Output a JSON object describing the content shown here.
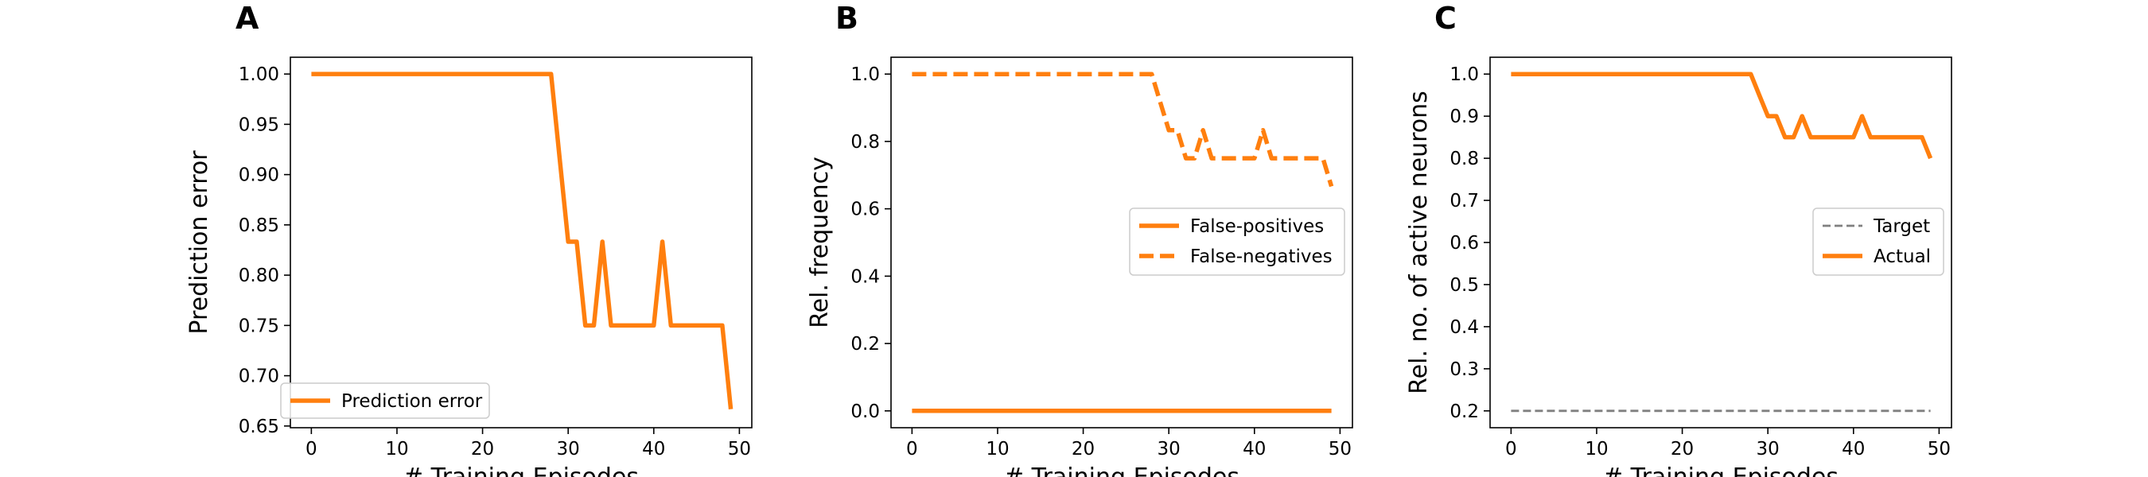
{
  "chart_data": [
    {
      "type": "line",
      "panel_label": "A",
      "xlabel": "# Training Episodes",
      "ylabel": "Prediction error",
      "xlim": [
        -2.45,
        51.45
      ],
      "ylim": [
        0.6483,
        1.0167
      ],
      "xticks": [
        0,
        10,
        20,
        30,
        40,
        50
      ],
      "yticks": [
        0.65,
        0.7,
        0.75,
        0.8,
        0.85,
        0.9,
        0.95,
        1.0
      ],
      "ytick_labels": [
        "0.65",
        "0.70",
        "0.75",
        "0.80",
        "0.85",
        "0.90",
        "0.95",
        "1.00"
      ],
      "grid": false,
      "legend_position": "lower-left",
      "series": [
        {
          "name": "Prediction error",
          "color": "#ff7f0e",
          "style": "solid",
          "x": [
            0,
            28,
            29,
            30,
            31,
            32,
            33,
            34,
            35,
            40,
            41,
            42,
            48,
            49
          ],
          "values": [
            1.0,
            1.0,
            0.9167,
            0.8333,
            0.8333,
            0.75,
            0.75,
            0.8333,
            0.75,
            0.75,
            0.8333,
            0.75,
            0.75,
            0.6667
          ]
        }
      ]
    },
    {
      "type": "line",
      "panel_label": "B",
      "xlabel": "# Training Episodes",
      "ylabel": "Rel. frequency",
      "xlim": [
        -2.45,
        51.45
      ],
      "ylim": [
        -0.05,
        1.05
      ],
      "xticks": [
        0,
        10,
        20,
        30,
        40,
        50
      ],
      "yticks": [
        0.0,
        0.2,
        0.4,
        0.6,
        0.8,
        1.0
      ],
      "ytick_labels": [
        "0.0",
        "0.2",
        "0.4",
        "0.6",
        "0.8",
        "1.0"
      ],
      "grid": false,
      "legend_position": "center-right",
      "series": [
        {
          "name": "False-positives",
          "color": "#ff7f0e",
          "style": "solid",
          "x": [
            0,
            49
          ],
          "values": [
            0.0,
            0.0
          ]
        },
        {
          "name": "False-negatives",
          "color": "#ff7f0e",
          "style": "dashed",
          "x": [
            0,
            28,
            29,
            30,
            31,
            32,
            33,
            34,
            35,
            40,
            41,
            42,
            48,
            49
          ],
          "values": [
            1.0,
            1.0,
            0.9167,
            0.8333,
            0.8333,
            0.75,
            0.75,
            0.8333,
            0.75,
            0.75,
            0.8333,
            0.75,
            0.75,
            0.6667
          ]
        }
      ]
    },
    {
      "type": "line",
      "panel_label": "C",
      "xlabel": "# Training Episodes",
      "ylabel": "Rel. no. of active neurons",
      "xlim": [
        -2.45,
        51.45
      ],
      "ylim": [
        0.16,
        1.04
      ],
      "xticks": [
        0,
        10,
        20,
        30,
        40,
        50
      ],
      "yticks": [
        0.2,
        0.3,
        0.4,
        0.5,
        0.6,
        0.7,
        0.8,
        0.9,
        1.0
      ],
      "ytick_labels": [
        "0.2",
        "0.3",
        "0.4",
        "0.5",
        "0.6",
        "0.7",
        "0.8",
        "0.9",
        "1.0"
      ],
      "grid": false,
      "legend_position": "center-right",
      "series": [
        {
          "name": "Target",
          "color": "#808080",
          "style": "dashed-thin",
          "x": [
            0,
            49
          ],
          "values": [
            0.2,
            0.2
          ]
        },
        {
          "name": "Actual",
          "color": "#ff7f0e",
          "style": "solid",
          "x": [
            0,
            28,
            29,
            30,
            31,
            32,
            33,
            34,
            35,
            40,
            41,
            42,
            48,
            49
          ],
          "values": [
            1.0,
            1.0,
            0.95,
            0.9,
            0.9,
            0.85,
            0.85,
            0.9,
            0.85,
            0.85,
            0.9,
            0.85,
            0.85,
            0.8
          ]
        }
      ]
    }
  ]
}
